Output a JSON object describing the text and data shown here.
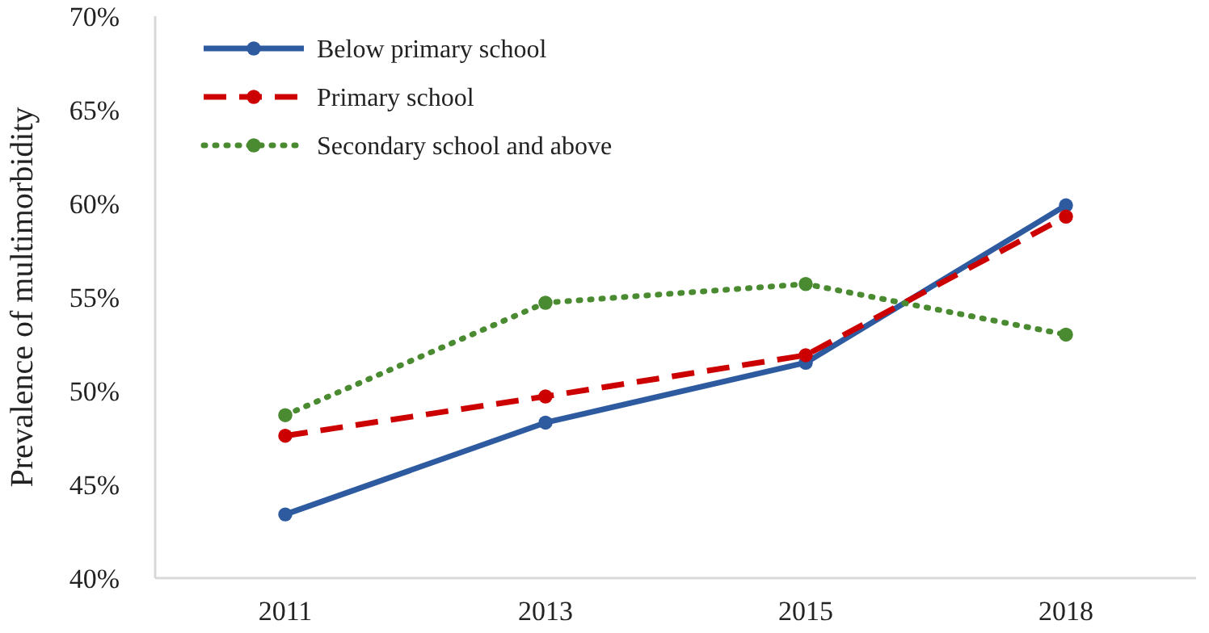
{
  "chart_data": {
    "type": "line",
    "ylabel": "Prevalence of multimorbidity",
    "categories": [
      "2011",
      "2013",
      "2015",
      "2018"
    ],
    "ylim": [
      40,
      70
    ],
    "yticks": [
      {
        "value": 40,
        "label": "40%"
      },
      {
        "value": 45,
        "label": "45%"
      },
      {
        "value": 50,
        "label": "50%"
      },
      {
        "value": 55,
        "label": "55%"
      },
      {
        "value": 60,
        "label": "60%"
      },
      {
        "value": 65,
        "label": "65%"
      },
      {
        "value": 70,
        "label": "70%"
      }
    ],
    "grid": false,
    "legend": "top left",
    "marker": "circle",
    "series": [
      {
        "name": "Below primary school",
        "color": "#2e5aa0",
        "line_style": "solid",
        "values": [
          43.4,
          48.3,
          51.5,
          59.9
        ]
      },
      {
        "name": "Primary school",
        "color": "#cc0000",
        "line_style": "dashed",
        "values": [
          47.6,
          49.7,
          51.9,
          59.3
        ]
      },
      {
        "name": "Secondary school and above",
        "color": "#4a8a30",
        "line_style": "dotted",
        "values": [
          48.7,
          54.7,
          55.7,
          53.0
        ]
      }
    ]
  }
}
